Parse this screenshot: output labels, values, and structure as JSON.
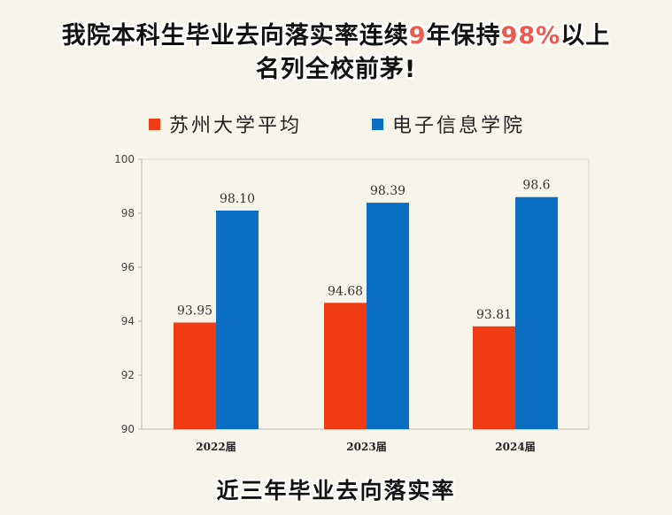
{
  "headline": {
    "line1_part1": "我院本科生毕业去向落实率连续",
    "line1_num1": "9",
    "line1_part2": "年保持",
    "line1_num2": "98%",
    "line1_part3": "以上",
    "line2": "名列全校前茅!",
    "highlight_color": "#ef5a4e"
  },
  "footer_title": "近三年毕业去向落实率",
  "chart_data": {
    "type": "bar",
    "categories": [
      "2022届",
      "2023届",
      "2024届"
    ],
    "series": [
      {
        "name": "苏州大学平均",
        "values": [
          93.95,
          94.68,
          93.81
        ],
        "labels": [
          "93.95",
          "94.68",
          "93.81"
        ],
        "color": "#f03c14"
      },
      {
        "name": "电子信息学院",
        "values": [
          98.1,
          98.39,
          98.6
        ],
        "labels": [
          "98.10",
          "98.39",
          "98.6"
        ],
        "color": "#0a6fc2"
      }
    ],
    "ylim": [
      90,
      100
    ],
    "yticks": [
      90,
      92,
      94,
      96,
      98,
      100
    ],
    "grid": false,
    "legend_position": "top"
  }
}
